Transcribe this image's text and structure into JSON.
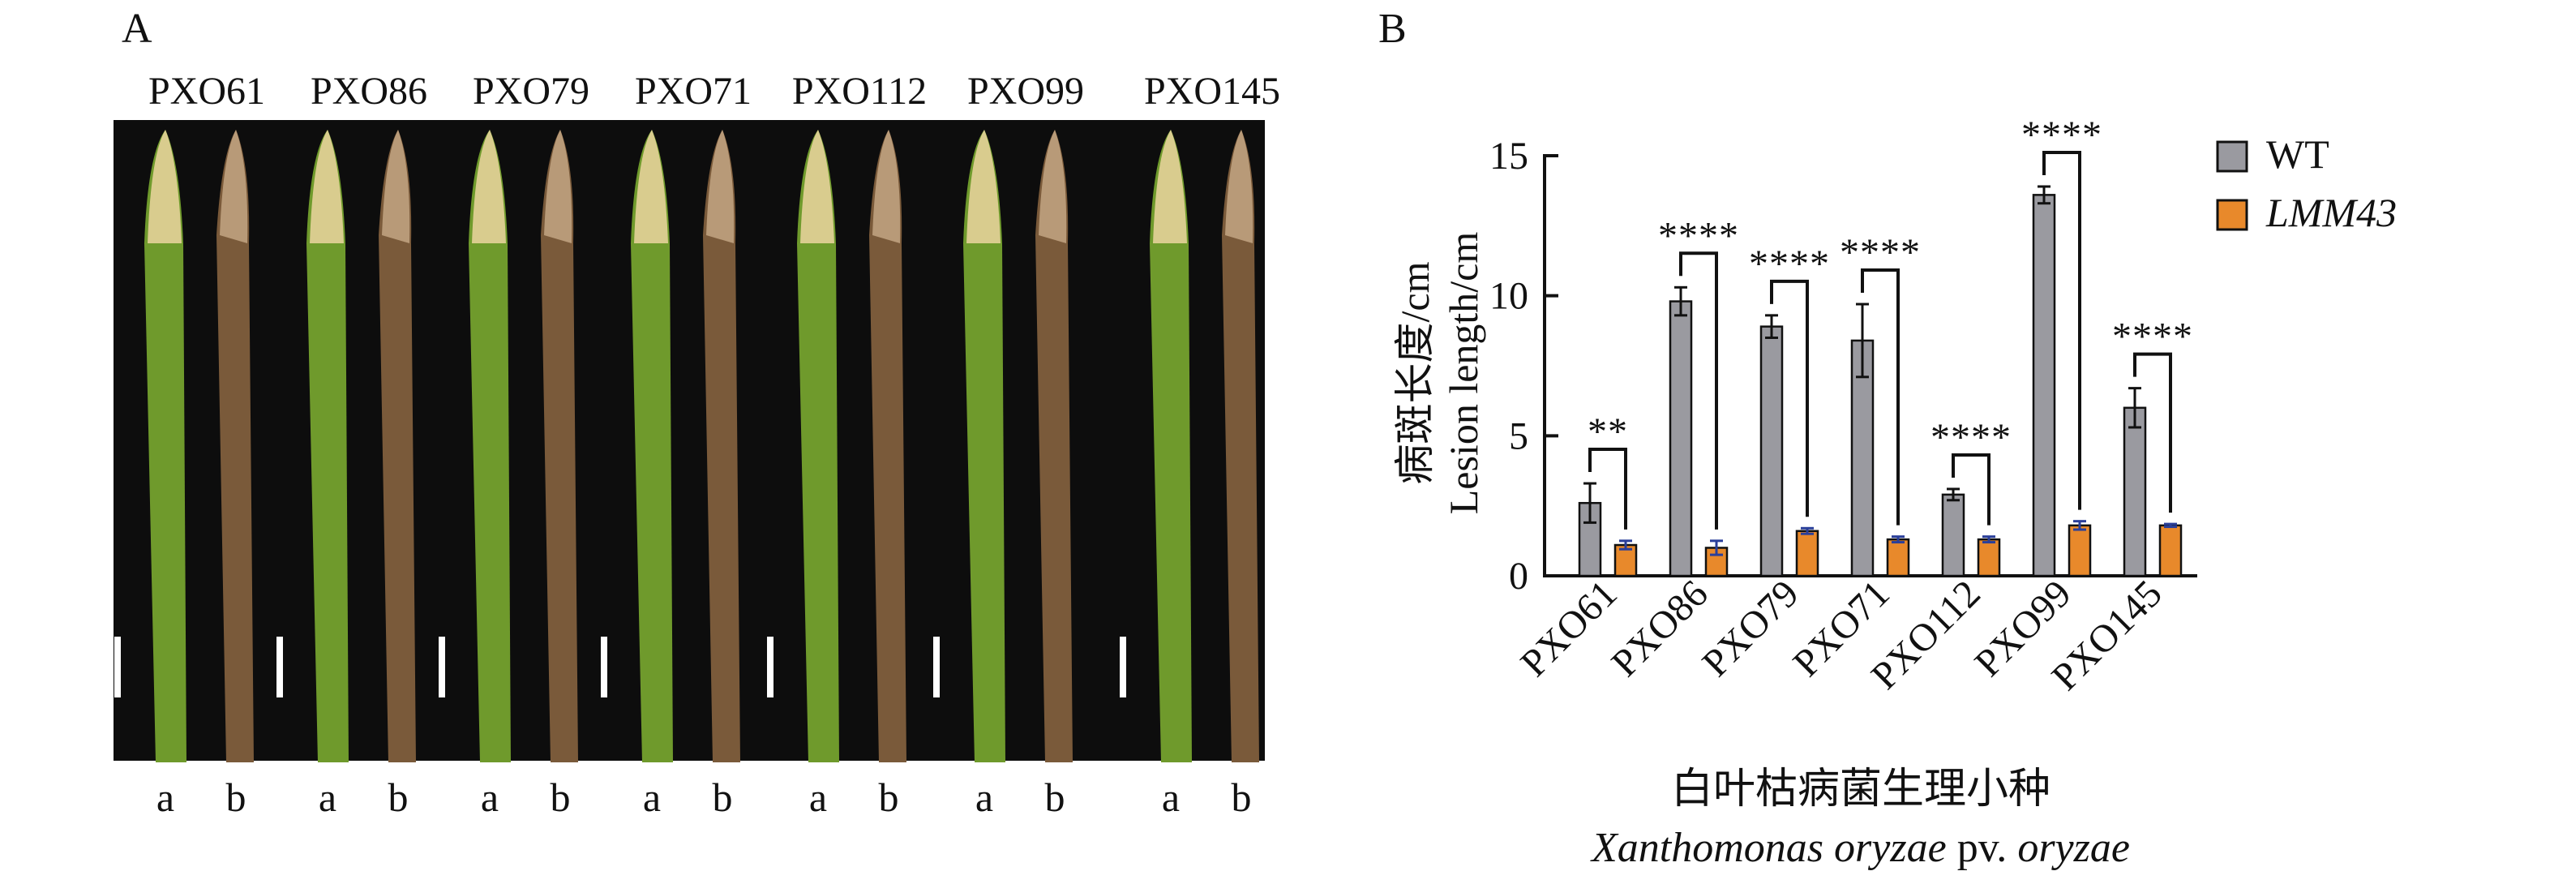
{
  "panel_a": {
    "letter": "A",
    "strains": [
      "PXO61",
      "PXO86",
      "PXO79",
      "PXO71",
      "PXO112",
      "PXO99",
      "PXO145"
    ],
    "leaf_labels": [
      "a",
      "b"
    ]
  },
  "panel_b": {
    "letter": "B"
  },
  "chart_data": {
    "type": "bar",
    "categories": [
      "PXO61",
      "PXO86",
      "PXO79",
      "PXO71",
      "PXO112",
      "PXO99",
      "PXO145"
    ],
    "series": [
      {
        "name": "WT",
        "color": "#9a9aa0",
        "values": [
          2.6,
          9.8,
          8.9,
          8.4,
          2.9,
          13.6,
          6.0
        ],
        "errors": [
          0.7,
          0.5,
          0.4,
          1.3,
          0.2,
          0.3,
          0.7
        ]
      },
      {
        "name": "LMM43",
        "color": "#e8892b",
        "values": [
          1.1,
          1.0,
          1.6,
          1.3,
          1.3,
          1.8,
          1.8
        ],
        "errors": [
          0.15,
          0.25,
          0.1,
          0.1,
          0.1,
          0.15,
          0.05
        ]
      }
    ],
    "significance": [
      "**",
      "****",
      "****",
      "****",
      "****",
      "****",
      "****"
    ],
    "ylabel_cn": "病斑长度/cm",
    "ylabel_en": "Lesion length/cm",
    "xlabel_cn": "白叶枯病菌生理小种",
    "xlabel_en": {
      "italic1": "Xanthomonas oryzae",
      "normal": " pv. ",
      "italic2": "oryzae"
    },
    "ylim": [
      0,
      15
    ],
    "yticks": [
      0,
      5,
      10,
      15
    ],
    "grid": false,
    "legend_position": "top-right"
  }
}
